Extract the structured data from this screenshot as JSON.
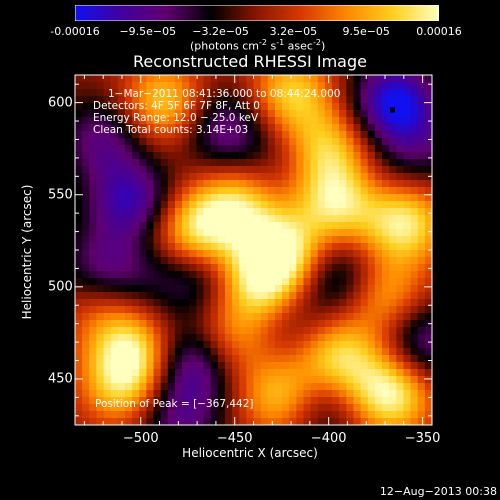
{
  "colorbar": {
    "ticks": [
      "-0.00016",
      "−9.5e−05",
      "−3.2e−05",
      "3.2e−05",
      "9.5e−05",
      "0.00016"
    ],
    "units_main": "(photons cm",
    "units_sup1": "-2",
    "units_mid1": " s",
    "units_sup2": "-1",
    "units_mid2": " asec",
    "units_sup3": "-2",
    "units_end": ")",
    "colors": [
      "#1010f0",
      "#4000a0",
      "#600070",
      "#000000",
      "#8a1600",
      "#d83a00",
      "#ff8a00",
      "#ffd020",
      "#ffffc0"
    ]
  },
  "chart_data": {
    "type": "heatmap",
    "title": "Reconstructed RHESSI Image",
    "xlabel": "Heliocentric X (arcsec)",
    "ylabel": "Heliocentric Y (arcsec)",
    "xlim": [
      -535,
      -345
    ],
    "ylim": [
      425,
      615
    ],
    "xticks": [
      -500,
      -450,
      -400,
      -350
    ],
    "yticks": [
      450,
      500,
      550,
      600
    ],
    "xtick_labels": [
      "−500",
      "−450",
      "−400",
      "−350"
    ],
    "ytick_labels": [
      "450",
      "500",
      "550",
      "600"
    ],
    "color_range": [
      -0.00016,
      0.00016
    ],
    "peak": {
      "x": -367,
      "y": 442
    },
    "annotations": {
      "time": "1−Mar−2011 08:41:36.000 to 08:44:24.000",
      "detectors": "Detectors: 4F 5F 6F 7F 8F, Att 0",
      "energy": "Energy Range: 12.0 − 25.0 keV",
      "clean": "Clean      Total counts: 3.14E+03",
      "peak": "Position of Peak = [−367,442]"
    },
    "features": [
      {
        "x": -488,
        "y": 600,
        "v": 0.00012
      },
      {
        "x": -420,
        "y": 605,
        "v": 0.00012
      },
      {
        "x": -400,
        "y": 575,
        "v": 0.00011
      },
      {
        "x": -395,
        "y": 546,
        "v": 0.00014
      },
      {
        "x": -360,
        "y": 535,
        "v": 0.00015
      },
      {
        "x": -470,
        "y": 530,
        "v": 0.00014
      },
      {
        "x": -448,
        "y": 545,
        "v": 0.00012
      },
      {
        "x": -425,
        "y": 518,
        "v": 0.00016
      },
      {
        "x": -438,
        "y": 500,
        "v": 0.00012
      },
      {
        "x": -505,
        "y": 465,
        "v": 0.00013
      },
      {
        "x": -510,
        "y": 445,
        "v": 0.0001
      },
      {
        "x": -455,
        "y": 470,
        "v": 0.0001
      },
      {
        "x": -425,
        "y": 440,
        "v": 0.00012
      },
      {
        "x": -395,
        "y": 462,
        "v": 0.00013
      },
      {
        "x": -367,
        "y": 442,
        "v": 0.00016
      },
      {
        "x": -370,
        "y": 495,
        "v": 0.0001
      },
      {
        "x": -520,
        "y": 490,
        "v": 6e-05
      },
      {
        "x": -500,
        "y": 530,
        "v": 3e-05
      },
      {
        "x": -365,
        "y": 600,
        "v": -0.00016
      },
      {
        "x": -505,
        "y": 545,
        "v": -0.00014
      },
      {
        "x": -470,
        "y": 460,
        "v": -0.00013
      },
      {
        "x": -470,
        "y": 505,
        "v": -8e-05
      },
      {
        "x": -455,
        "y": 585,
        "v": -0.0001
      },
      {
        "x": -520,
        "y": 580,
        "v": -9e-05
      },
      {
        "x": -520,
        "y": 510,
        "v": -9e-05
      },
      {
        "x": -395,
        "y": 505,
        "v": -9e-05
      },
      {
        "x": -350,
        "y": 470,
        "v": -0.0001
      },
      {
        "x": -350,
        "y": 575,
        "v": -6e-05
      },
      {
        "x": -405,
        "y": 435,
        "v": -7e-05
      },
      {
        "x": -480,
        "y": 430,
        "v": -9e-05
      },
      {
        "x": -500,
        "y": 505,
        "v": -4e-05
      },
      {
        "x": -430,
        "y": 565,
        "v": -3e-05
      },
      {
        "x": -375,
        "y": 555,
        "v": -3e-05
      },
      {
        "x": -420,
        "y": 480,
        "v": -4e-05
      }
    ]
  },
  "footer": {
    "date_stamp": "12−Aug−2013 00:38"
  }
}
